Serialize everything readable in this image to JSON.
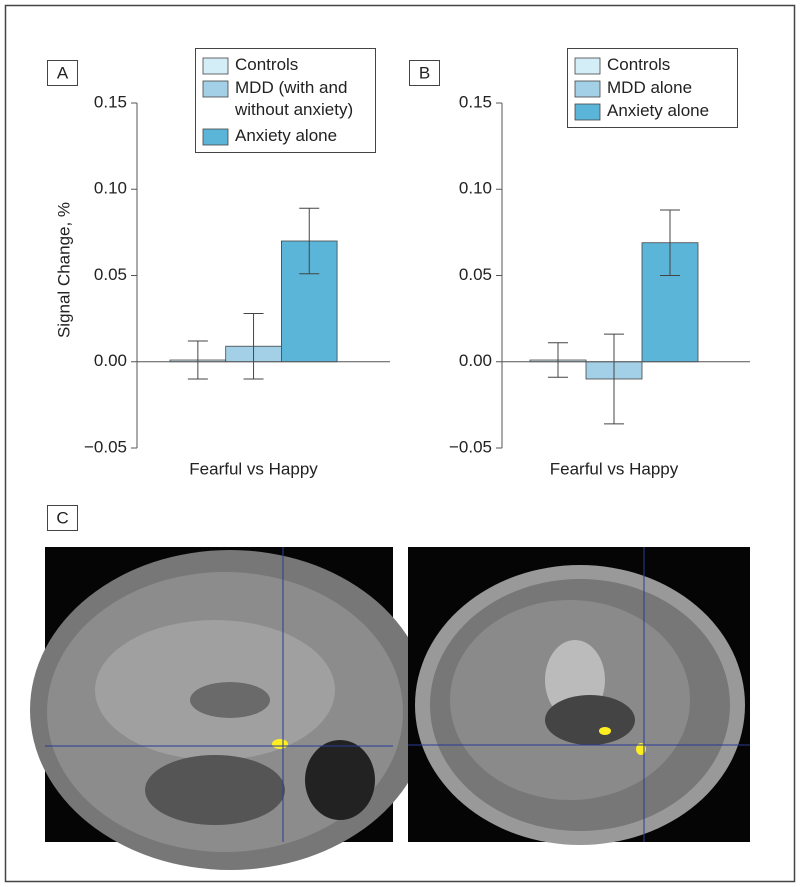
{
  "chart_data": [
    {
      "type": "bar",
      "panel_label": "A",
      "ylabel": "Signal Change, %",
      "categories": [
        "Fearful vs Happy"
      ],
      "ylim": [
        -0.05,
        0.15
      ],
      "yticks": [
        {
          "value": -0.05,
          "label": "−0.05"
        },
        {
          "value": 0,
          "label": "0.00"
        },
        {
          "value": 0.05,
          "label": "0.05"
        },
        {
          "value": 0.1,
          "label": "0.10"
        },
        {
          "value": 0.15,
          "label": "0.15"
        }
      ],
      "series": [
        {
          "name": "Controls",
          "color": "#d4eef8",
          "values": [
            0.001
          ],
          "errors": [
            0.011
          ]
        },
        {
          "name": "MDD (with and without anxiety)",
          "color": "#a3d0e6",
          "values": [
            0.009
          ],
          "errors": [
            0.019
          ]
        },
        {
          "name": "Anxiety alone",
          "color": "#5bb5d9",
          "values": [
            0.07
          ],
          "errors": [
            0.019
          ]
        }
      ]
    },
    {
      "type": "bar",
      "panel_label": "B",
      "categories": [
        "Fearful vs Happy"
      ],
      "ylim": [
        -0.05,
        0.15
      ],
      "yticks": [
        {
          "value": -0.05,
          "label": "−0.05"
        },
        {
          "value": 0,
          "label": "0.00"
        },
        {
          "value": 0.05,
          "label": "0.05"
        },
        {
          "value": 0.1,
          "label": "0.10"
        },
        {
          "value": 0.15,
          "label": "0.15"
        }
      ],
      "series": [
        {
          "name": "Controls",
          "color": "#d4eef8",
          "values": [
            0.001
          ],
          "errors": [
            0.01
          ]
        },
        {
          "name": "MDD alone",
          "color": "#a3d0e6",
          "values": [
            -0.01
          ],
          "errors": [
            0.026
          ]
        },
        {
          "name": "Anxiety alone",
          "color": "#5bb5d9",
          "values": [
            0.069
          ],
          "errors": [
            0.019
          ]
        }
      ]
    }
  ],
  "panel_c": {
    "label": "C"
  }
}
